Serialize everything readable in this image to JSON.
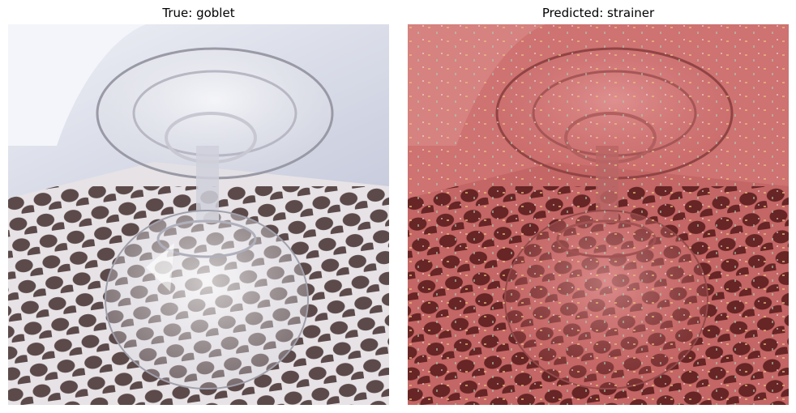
{
  "panels": [
    {
      "title": "True: goblet",
      "image": "goblet-on-perforated-drain-tray"
    },
    {
      "title": "Predicted: strainer",
      "image": "goblet-with-saliency-heatmap-overlay"
    }
  ],
  "colors": {
    "background": "#ffffff",
    "tray": "#e6e2e6",
    "hole": "#5c4a4a",
    "sink": "#d7dbe8",
    "overlay": "#c44a4a"
  }
}
